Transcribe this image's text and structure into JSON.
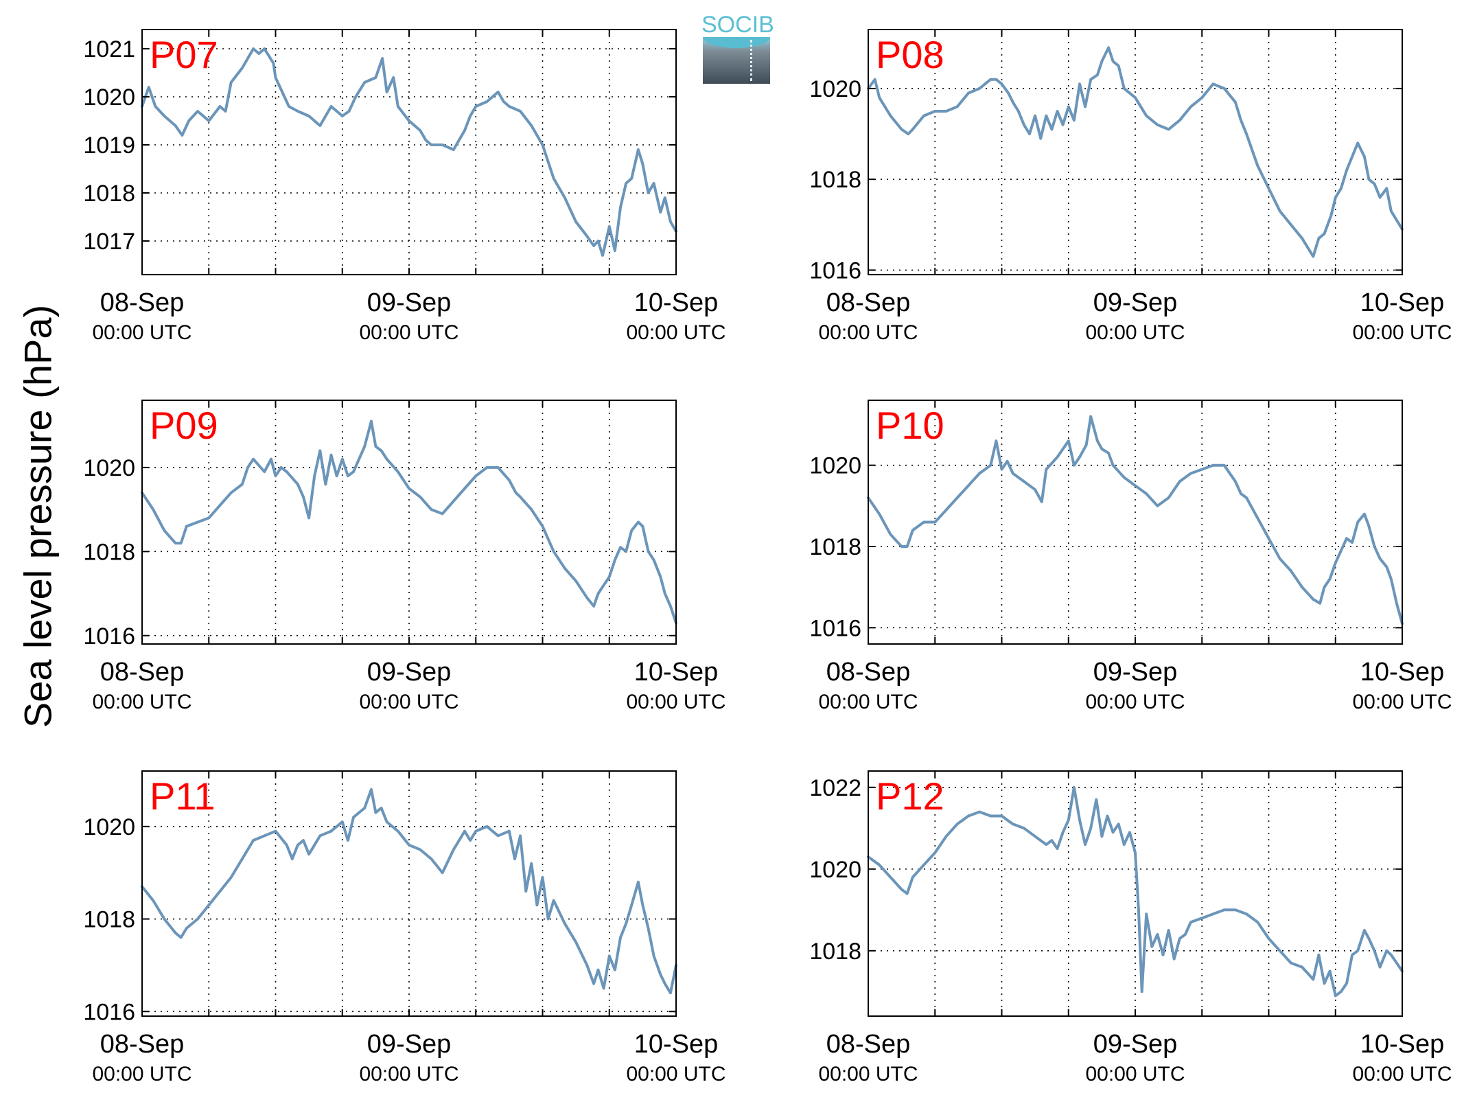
{
  "ylabel": "Sea level pressure (hPa)",
  "logo_text": "SOCIB",
  "colors": {
    "series": "#6b95b9",
    "panel_label": "#ff0000",
    "axis": "#000000",
    "grid": "#000000"
  },
  "chart_data": [
    {
      "type": "line",
      "name": "P07",
      "x_ticks": [
        {
          "date": "08-Sep",
          "time": "00:00 UTC"
        },
        {
          "date": "09-Sep",
          "time": "00:00 UTC"
        },
        {
          "date": "10-Sep",
          "time": "00:00 UTC"
        }
      ],
      "x_range_hours": [
        0,
        48
      ],
      "ylim": [
        1016.3,
        1021.4
      ],
      "yticks": [
        1017,
        1018,
        1019,
        1020,
        1021
      ],
      "grid": true,
      "series": [
        {
          "x": [
            0,
            0.6,
            1.2,
            2,
            3,
            3.6,
            4.2,
            5,
            6,
            7,
            7.5,
            8,
            9,
            10,
            10.5,
            11,
            11.8,
            12,
            12.6,
            13.2,
            14,
            15,
            15.5,
            16,
            17,
            18,
            18.6,
            19.2,
            20,
            21,
            21.6,
            22,
            22.6,
            23,
            24,
            25,
            25.5,
            26,
            27,
            28,
            29,
            29.5,
            30,
            31,
            32,
            32.5,
            33,
            34,
            35,
            36,
            37,
            38,
            39,
            40,
            40.6,
            41,
            41.4,
            42,
            42.5,
            43,
            43.5,
            44,
            44.6,
            45,
            45.5,
            46,
            46.6,
            47,
            47.5,
            48
          ],
          "y": [
            1019.8,
            1020.2,
            1019.8,
            1019.6,
            1019.4,
            1019.2,
            1019.5,
            1019.7,
            1019.5,
            1019.8,
            1019.7,
            1020.3,
            1020.6,
            1021.0,
            1020.9,
            1021.0,
            1020.7,
            1020.4,
            1020.1,
            1019.8,
            1019.7,
            1019.6,
            1019.5,
            1019.4,
            1019.8,
            1019.6,
            1019.7,
            1020.0,
            1020.3,
            1020.4,
            1020.8,
            1020.1,
            1020.4,
            1019.8,
            1019.5,
            1019.3,
            1019.1,
            1019.0,
            1019.0,
            1018.9,
            1019.3,
            1019.6,
            1019.8,
            1019.9,
            1020.1,
            1019.9,
            1019.8,
            1019.7,
            1019.4,
            1019.0,
            1018.3,
            1017.9,
            1017.4,
            1017.1,
            1016.9,
            1017.0,
            1016.7,
            1017.3,
            1016.8,
            1017.7,
            1018.2,
            1018.3,
            1018.9,
            1018.6,
            1018.0,
            1018.2,
            1017.6,
            1017.9,
            1017.4,
            1017.2
          ]
        }
      ]
    },
    {
      "type": "line",
      "name": "P08",
      "x_ticks": [
        {
          "date": "08-Sep",
          "time": "00:00 UTC"
        },
        {
          "date": "09-Sep",
          "time": "00:00 UTC"
        },
        {
          "date": "10-Sep",
          "time": "00:00 UTC"
        }
      ],
      "x_range_hours": [
        0,
        48
      ],
      "ylim": [
        1015.9,
        1021.3
      ],
      "yticks": [
        1016,
        1018,
        1020
      ],
      "grid": true,
      "series": [
        {
          "x": [
            0,
            0.6,
            1,
            2,
            3,
            3.6,
            4,
            5,
            6,
            7,
            8,
            9,
            10,
            11,
            11.5,
            12,
            12.6,
            13,
            13.5,
            14,
            14.5,
            15,
            15.5,
            16,
            16.5,
            17,
            17.5,
            18,
            18.5,
            19,
            19.5,
            20,
            20.6,
            21,
            21.6,
            22,
            22.5,
            23,
            24,
            25,
            26,
            27,
            28,
            29,
            30,
            31,
            32,
            33,
            33.5,
            34,
            35,
            36,
            37,
            38,
            39,
            40,
            40.5,
            41,
            41.6,
            42,
            42.5,
            43,
            43.5,
            44,
            44.6,
            45,
            45.5,
            46,
            46.6,
            47,
            47.5,
            48
          ],
          "y": [
            1020.0,
            1020.2,
            1019.8,
            1019.4,
            1019.1,
            1019.0,
            1019.1,
            1019.4,
            1019.5,
            1019.5,
            1019.6,
            1019.9,
            1020.0,
            1020.2,
            1020.2,
            1020.1,
            1019.9,
            1019.7,
            1019.5,
            1019.2,
            1019.0,
            1019.4,
            1018.9,
            1019.4,
            1019.1,
            1019.5,
            1019.2,
            1019.6,
            1019.3,
            1020.1,
            1019.6,
            1020.2,
            1020.3,
            1020.6,
            1020.9,
            1020.6,
            1020.5,
            1020.0,
            1019.8,
            1019.4,
            1019.2,
            1019.1,
            1019.3,
            1019.6,
            1019.8,
            1020.1,
            1020.0,
            1019.7,
            1019.3,
            1019.0,
            1018.3,
            1017.8,
            1017.3,
            1017.0,
            1016.7,
            1016.3,
            1016.7,
            1016.8,
            1017.2,
            1017.6,
            1017.8,
            1018.2,
            1018.5,
            1018.8,
            1018.5,
            1018.0,
            1017.9,
            1017.6,
            1017.8,
            1017.3,
            1017.1,
            1016.9
          ]
        }
      ]
    },
    {
      "type": "line",
      "name": "P09",
      "x_ticks": [
        {
          "date": "08-Sep",
          "time": "00:00 UTC"
        },
        {
          "date": "09-Sep",
          "time": "00:00 UTC"
        },
        {
          "date": "10-Sep",
          "time": "00:00 UTC"
        }
      ],
      "x_range_hours": [
        0,
        48
      ],
      "ylim": [
        1015.8,
        1021.6
      ],
      "yticks": [
        1016,
        1018,
        1020
      ],
      "grid": true,
      "series": [
        {
          "x": [
            0,
            1,
            2,
            3,
            3.5,
            4,
            5,
            6,
            7,
            8,
            9,
            9.5,
            10,
            11,
            11.6,
            12,
            12.5,
            13,
            14,
            14.5,
            15,
            15.5,
            16,
            16.5,
            17,
            17.5,
            18,
            18.5,
            19,
            20,
            20.6,
            21,
            21.5,
            22,
            23,
            24,
            25,
            26,
            27,
            28,
            29,
            30,
            31,
            32,
            33,
            33.6,
            34,
            35,
            36,
            37,
            38,
            39,
            40,
            40.6,
            41,
            41.5,
            42,
            42.5,
            43,
            43.5,
            44,
            44.6,
            45,
            45.5,
            46,
            46.6,
            47,
            47.5,
            48
          ],
          "y": [
            1019.4,
            1019.0,
            1018.5,
            1018.2,
            1018.2,
            1018.6,
            1018.7,
            1018.8,
            1019.1,
            1019.4,
            1019.6,
            1020.0,
            1020.2,
            1019.9,
            1020.2,
            1019.8,
            1020.0,
            1019.9,
            1019.6,
            1019.3,
            1018.8,
            1019.8,
            1020.4,
            1019.6,
            1020.3,
            1019.8,
            1020.2,
            1019.8,
            1019.9,
            1020.5,
            1021.1,
            1020.5,
            1020.4,
            1020.2,
            1019.9,
            1019.5,
            1019.3,
            1019.0,
            1018.9,
            1019.2,
            1019.5,
            1019.8,
            1020.0,
            1020.0,
            1019.7,
            1019.4,
            1019.3,
            1019.0,
            1018.6,
            1018.0,
            1017.6,
            1017.3,
            1016.9,
            1016.7,
            1017.0,
            1017.2,
            1017.4,
            1017.8,
            1018.1,
            1018.0,
            1018.5,
            1018.7,
            1018.6,
            1018.0,
            1017.8,
            1017.4,
            1017.0,
            1016.7,
            1016.3
          ]
        }
      ]
    },
    {
      "type": "line",
      "name": "P10",
      "x_ticks": [
        {
          "date": "08-Sep",
          "time": "00:00 UTC"
        },
        {
          "date": "09-Sep",
          "time": "00:00 UTC"
        },
        {
          "date": "10-Sep",
          "time": "00:00 UTC"
        }
      ],
      "x_range_hours": [
        0,
        48
      ],
      "ylim": [
        1015.6,
        1021.6
      ],
      "yticks": [
        1016,
        1018,
        1020
      ],
      "grid": true,
      "series": [
        {
          "x": [
            0,
            1,
            2,
            3,
            3.5,
            4,
            5,
            6,
            7,
            8,
            9,
            10,
            11,
            11.5,
            12,
            12.5,
            13,
            14,
            15,
            15.6,
            16,
            17,
            17.5,
            18,
            18.5,
            19,
            19.6,
            20,
            20.6,
            21,
            21.6,
            22,
            23,
            24,
            25,
            26,
            27,
            28,
            29,
            30,
            31,
            32,
            33,
            33.5,
            34,
            35,
            36,
            37,
            38,
            39,
            40,
            40.6,
            41,
            41.5,
            42,
            42.5,
            43,
            43.5,
            44,
            44.6,
            45,
            45.5,
            46,
            46.6,
            47,
            47.5,
            48
          ],
          "y": [
            1019.2,
            1018.8,
            1018.3,
            1018.0,
            1018.0,
            1018.4,
            1018.6,
            1018.6,
            1018.9,
            1019.2,
            1019.5,
            1019.8,
            1020.0,
            1020.6,
            1019.9,
            1020.1,
            1019.8,
            1019.6,
            1019.4,
            1019.1,
            1019.9,
            1020.2,
            1020.4,
            1020.6,
            1020.0,
            1020.2,
            1020.5,
            1021.2,
            1020.6,
            1020.4,
            1020.3,
            1020.0,
            1019.7,
            1019.5,
            1019.3,
            1019.0,
            1019.2,
            1019.6,
            1019.8,
            1019.9,
            1020.0,
            1020.0,
            1019.6,
            1019.3,
            1019.2,
            1018.7,
            1018.2,
            1017.7,
            1017.4,
            1017.0,
            1016.7,
            1016.6,
            1017.0,
            1017.2,
            1017.6,
            1017.9,
            1018.2,
            1018.1,
            1018.6,
            1018.8,
            1018.5,
            1018.0,
            1017.7,
            1017.5,
            1017.2,
            1016.6,
            1016.1
          ]
        }
      ]
    },
    {
      "type": "line",
      "name": "P11",
      "x_ticks": [
        {
          "date": "08-Sep",
          "time": "00:00 UTC"
        },
        {
          "date": "09-Sep",
          "time": "00:00 UTC"
        },
        {
          "date": "10-Sep",
          "time": "00:00 UTC"
        }
      ],
      "x_range_hours": [
        0,
        48
      ],
      "ylim": [
        1015.9,
        1021.2
      ],
      "yticks": [
        1016,
        1018,
        1020
      ],
      "grid": true,
      "series": [
        {
          "x": [
            0,
            1,
            2,
            3,
            3.5,
            4,
            5,
            6,
            7,
            8,
            9,
            10,
            11,
            12,
            13,
            13.5,
            14,
            14.5,
            15,
            15.5,
            16,
            17,
            18,
            18.5,
            19,
            20,
            20.6,
            21,
            21.5,
            22,
            23,
            24,
            25,
            26,
            27,
            28,
            29,
            29.5,
            30,
            31,
            32,
            33,
            33.5,
            34,
            34.5,
            35,
            35.5,
            36,
            36.5,
            37,
            38,
            39,
            40,
            40.6,
            41,
            41.5,
            42,
            42.5,
            43,
            43.5,
            44,
            44.6,
            45,
            45.5,
            46,
            46.6,
            47,
            47.5,
            48
          ],
          "y": [
            1018.7,
            1018.4,
            1018.0,
            1017.7,
            1017.6,
            1017.8,
            1018.0,
            1018.3,
            1018.6,
            1018.9,
            1019.3,
            1019.7,
            1019.8,
            1019.9,
            1019.6,
            1019.3,
            1019.6,
            1019.7,
            1019.4,
            1019.6,
            1019.8,
            1019.9,
            1020.1,
            1019.7,
            1020.2,
            1020.4,
            1020.8,
            1020.3,
            1020.4,
            1020.1,
            1019.9,
            1019.6,
            1019.5,
            1019.3,
            1019.0,
            1019.5,
            1019.9,
            1019.7,
            1019.9,
            1020.0,
            1019.8,
            1019.9,
            1019.3,
            1019.8,
            1018.6,
            1019.2,
            1018.3,
            1018.9,
            1018.0,
            1018.4,
            1017.9,
            1017.5,
            1017.0,
            1016.6,
            1016.9,
            1016.5,
            1017.2,
            1016.9,
            1017.6,
            1017.9,
            1018.3,
            1018.8,
            1018.3,
            1017.8,
            1017.2,
            1016.8,
            1016.6,
            1016.4,
            1017.0
          ]
        }
      ]
    },
    {
      "type": "line",
      "name": "P12",
      "x_ticks": [
        {
          "date": "08-Sep",
          "time": "00:00 UTC"
        },
        {
          "date": "09-Sep",
          "time": "00:00 UTC"
        },
        {
          "date": "10-Sep",
          "time": "00:00 UTC"
        }
      ],
      "x_range_hours": [
        0,
        48
      ],
      "ylim": [
        1016.4,
        1022.4
      ],
      "yticks": [
        1018,
        1020,
        1022
      ],
      "grid": true,
      "series": [
        {
          "x": [
            0,
            1,
            2,
            3,
            3.5,
            4,
            5,
            6,
            7,
            8,
            9,
            10,
            11,
            12,
            13,
            14,
            15,
            16,
            16.5,
            17,
            17.5,
            18,
            18.5,
            19,
            19.5,
            20,
            20.5,
            21,
            21.5,
            22,
            22.5,
            23,
            23.5,
            24,
            24.3,
            24.6,
            25,
            25.5,
            26,
            26.5,
            27,
            27.5,
            28,
            28.5,
            29,
            30,
            31,
            32,
            33,
            34,
            35,
            36,
            37,
            38,
            39,
            40,
            40.5,
            41,
            41.5,
            42,
            42.5,
            43,
            43.5,
            44,
            44.6,
            45,
            45.5,
            46,
            46.6,
            47,
            47.5,
            48
          ],
          "y": [
            1020.3,
            1020.1,
            1019.8,
            1019.5,
            1019.4,
            1019.8,
            1020.1,
            1020.4,
            1020.8,
            1021.1,
            1021.3,
            1021.4,
            1021.3,
            1021.3,
            1021.1,
            1021.0,
            1020.8,
            1020.6,
            1020.7,
            1020.5,
            1020.9,
            1021.2,
            1022.0,
            1021.2,
            1020.6,
            1021.0,
            1021.7,
            1020.8,
            1021.3,
            1020.9,
            1021.1,
            1020.6,
            1020.9,
            1020.4,
            1019.0,
            1017.0,
            1018.9,
            1018.1,
            1018.4,
            1017.9,
            1018.5,
            1017.8,
            1018.3,
            1018.4,
            1018.7,
            1018.8,
            1018.9,
            1019.0,
            1019.0,
            1018.9,
            1018.7,
            1018.3,
            1018.0,
            1017.7,
            1017.6,
            1017.3,
            1017.9,
            1017.2,
            1017.5,
            1016.9,
            1017.0,
            1017.2,
            1017.9,
            1018.0,
            1018.5,
            1018.3,
            1018.0,
            1017.6,
            1018.0,
            1017.9,
            1017.7,
            1017.5
          ]
        }
      ]
    }
  ]
}
